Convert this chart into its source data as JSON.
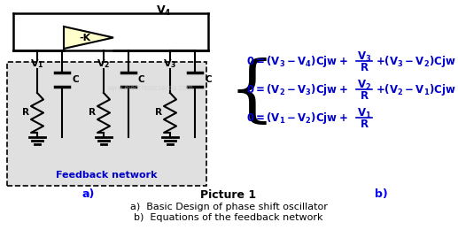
{
  "title": "Picture 1",
  "subtitle_a": "a)  Basic Design of phase shift oscillator",
  "subtitle_b": "b)  Equations of the feedback network",
  "label_a": "a)",
  "label_b": "b)",
  "feedback_label": "Feedback network",
  "bg_color": "#ffffff",
  "circuit_bg": "#e0e0e0",
  "feedback_color": "#0000cc",
  "amplifier_fill": "#ffffcc",
  "eq_color": "#0000cc",
  "watermark_color": "#cccccc",
  "fig_width": 5.17,
  "fig_height": 2.6,
  "fig_dpi": 100
}
